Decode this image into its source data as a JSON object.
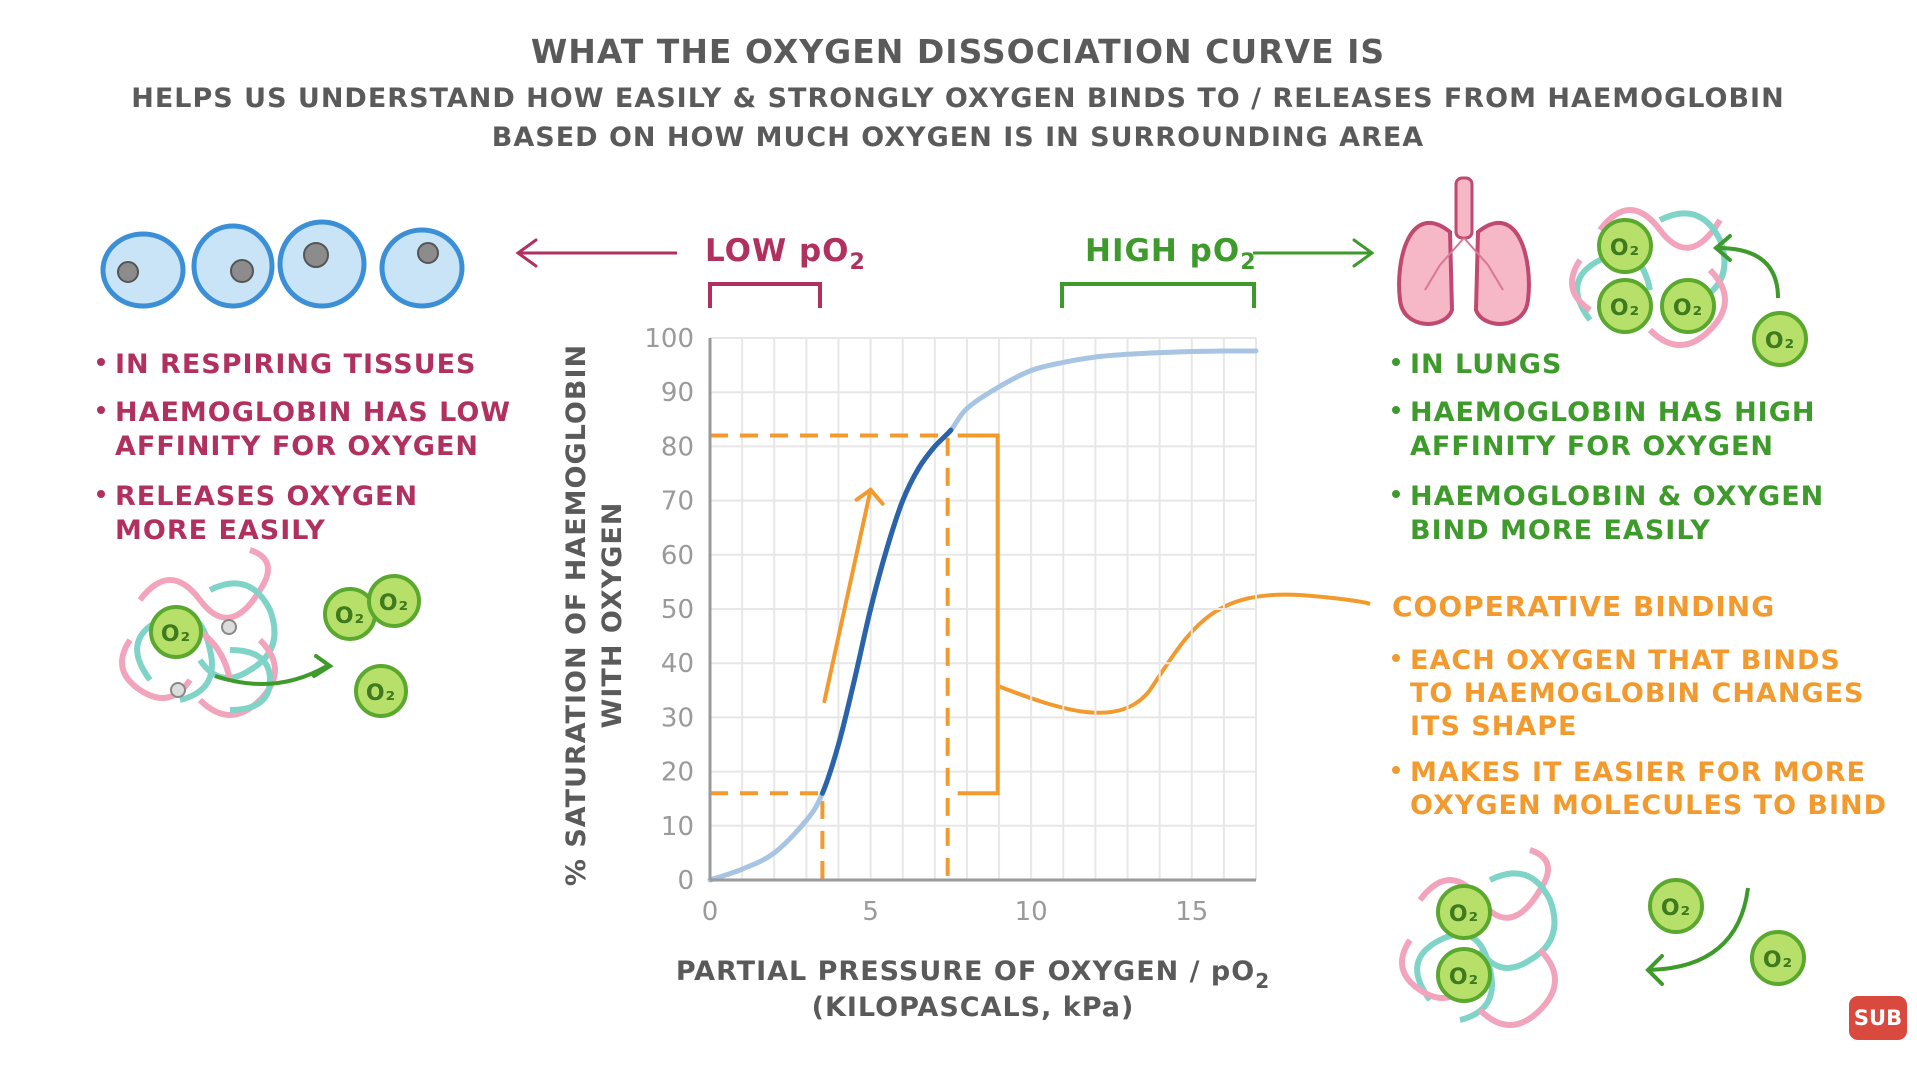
{
  "header": {
    "title": "WHAT THE OXYGEN DISSOCIATION CURVE IS",
    "subtitle_line1": "HELPS US UNDERSTAND HOW EASILY & STRONGLY OXYGEN BINDS TO / RELEASES FROM HAEMOGLOBIN",
    "subtitle_line2": "BASED ON HOW MUCH OXYGEN IS IN SURROUNDING AREA"
  },
  "left_panel": {
    "label_prefix": "LOW pO",
    "label_sub": "2",
    "bullets": [
      "IN RESPIRING TISSUES",
      "HAEMOGLOBIN HAS LOW",
      "AFFINITY FOR OXYGEN",
      "RELEASES OXYGEN",
      "MORE EASILY"
    ],
    "molecule_label": "O₂"
  },
  "right_panel": {
    "label_prefix": "HIGH pO",
    "label_sub": "2",
    "bullets": [
      "IN LUNGS",
      "HAEMOGLOBIN HAS HIGH",
      "AFFINITY FOR OXYGEN",
      "HAEMOGLOBIN & OXYGEN",
      "BIND MORE EASILY"
    ],
    "molecule_label": "O₂"
  },
  "cooperative": {
    "heading": "COOPERATIVE BINDING",
    "bullets": [
      "EACH OXYGEN THAT BINDS",
      "TO HAEMOGLOBIN CHANGES",
      "ITS SHAPE",
      "MAKES IT EASIER FOR MORE",
      "OXYGEN MOLECULES TO BIND"
    ]
  },
  "colors": {
    "curve_light": "#a7c4e3",
    "curve_dark": "#2b63a8",
    "orange": "#f29a2e",
    "red": "#b0305f",
    "green": "#3f9a2c",
    "cell_fill": "#c9e3f7",
    "cell_stroke": "#3a8fd6",
    "oxygen_fill": "#b7e06a",
    "oxygen_stroke": "#5aa82e"
  },
  "badge": {
    "label": "SUB"
  },
  "chart_data": {
    "type": "line",
    "title": "",
    "xlabel_line1": "PARTIAL PRESSURE OF OXYGEN / pO",
    "xlabel_sub": "2",
    "xlabel_line2": "(KILOPASCALS, kPa)",
    "ylabel_line1": "% SATURATION OF HAEMOGLOBIN",
    "ylabel_line2": "WITH OXYGEN",
    "xlim": [
      0,
      17
    ],
    "ylim": [
      0,
      100
    ],
    "x_ticks": [
      0,
      5,
      10,
      15
    ],
    "y_ticks": [
      0,
      10,
      20,
      30,
      40,
      50,
      60,
      70,
      80,
      90,
      100
    ],
    "grid": true,
    "series": [
      {
        "x": [
          0,
          1,
          2,
          3,
          3.5,
          4,
          4.5,
          5,
          5.5,
          6,
          6.5,
          7,
          7.5,
          8,
          9,
          10,
          11,
          12,
          13,
          14,
          15,
          16,
          17
        ],
        "y": [
          0,
          2,
          5,
          11,
          16,
          25,
          37,
          50,
          61,
          70,
          76,
          80,
          83,
          87,
          91,
          94,
          95.5,
          96.5,
          97,
          97.3,
          97.5,
          97.6,
          97.6
        ]
      }
    ],
    "steep_region": {
      "x_start": 3.5,
      "x_end": 7.4,
      "y_start": 16,
      "y_end": 82
    },
    "low_po2_range": [
      0,
      3.5
    ],
    "high_po2_range": [
      11,
      17
    ]
  }
}
